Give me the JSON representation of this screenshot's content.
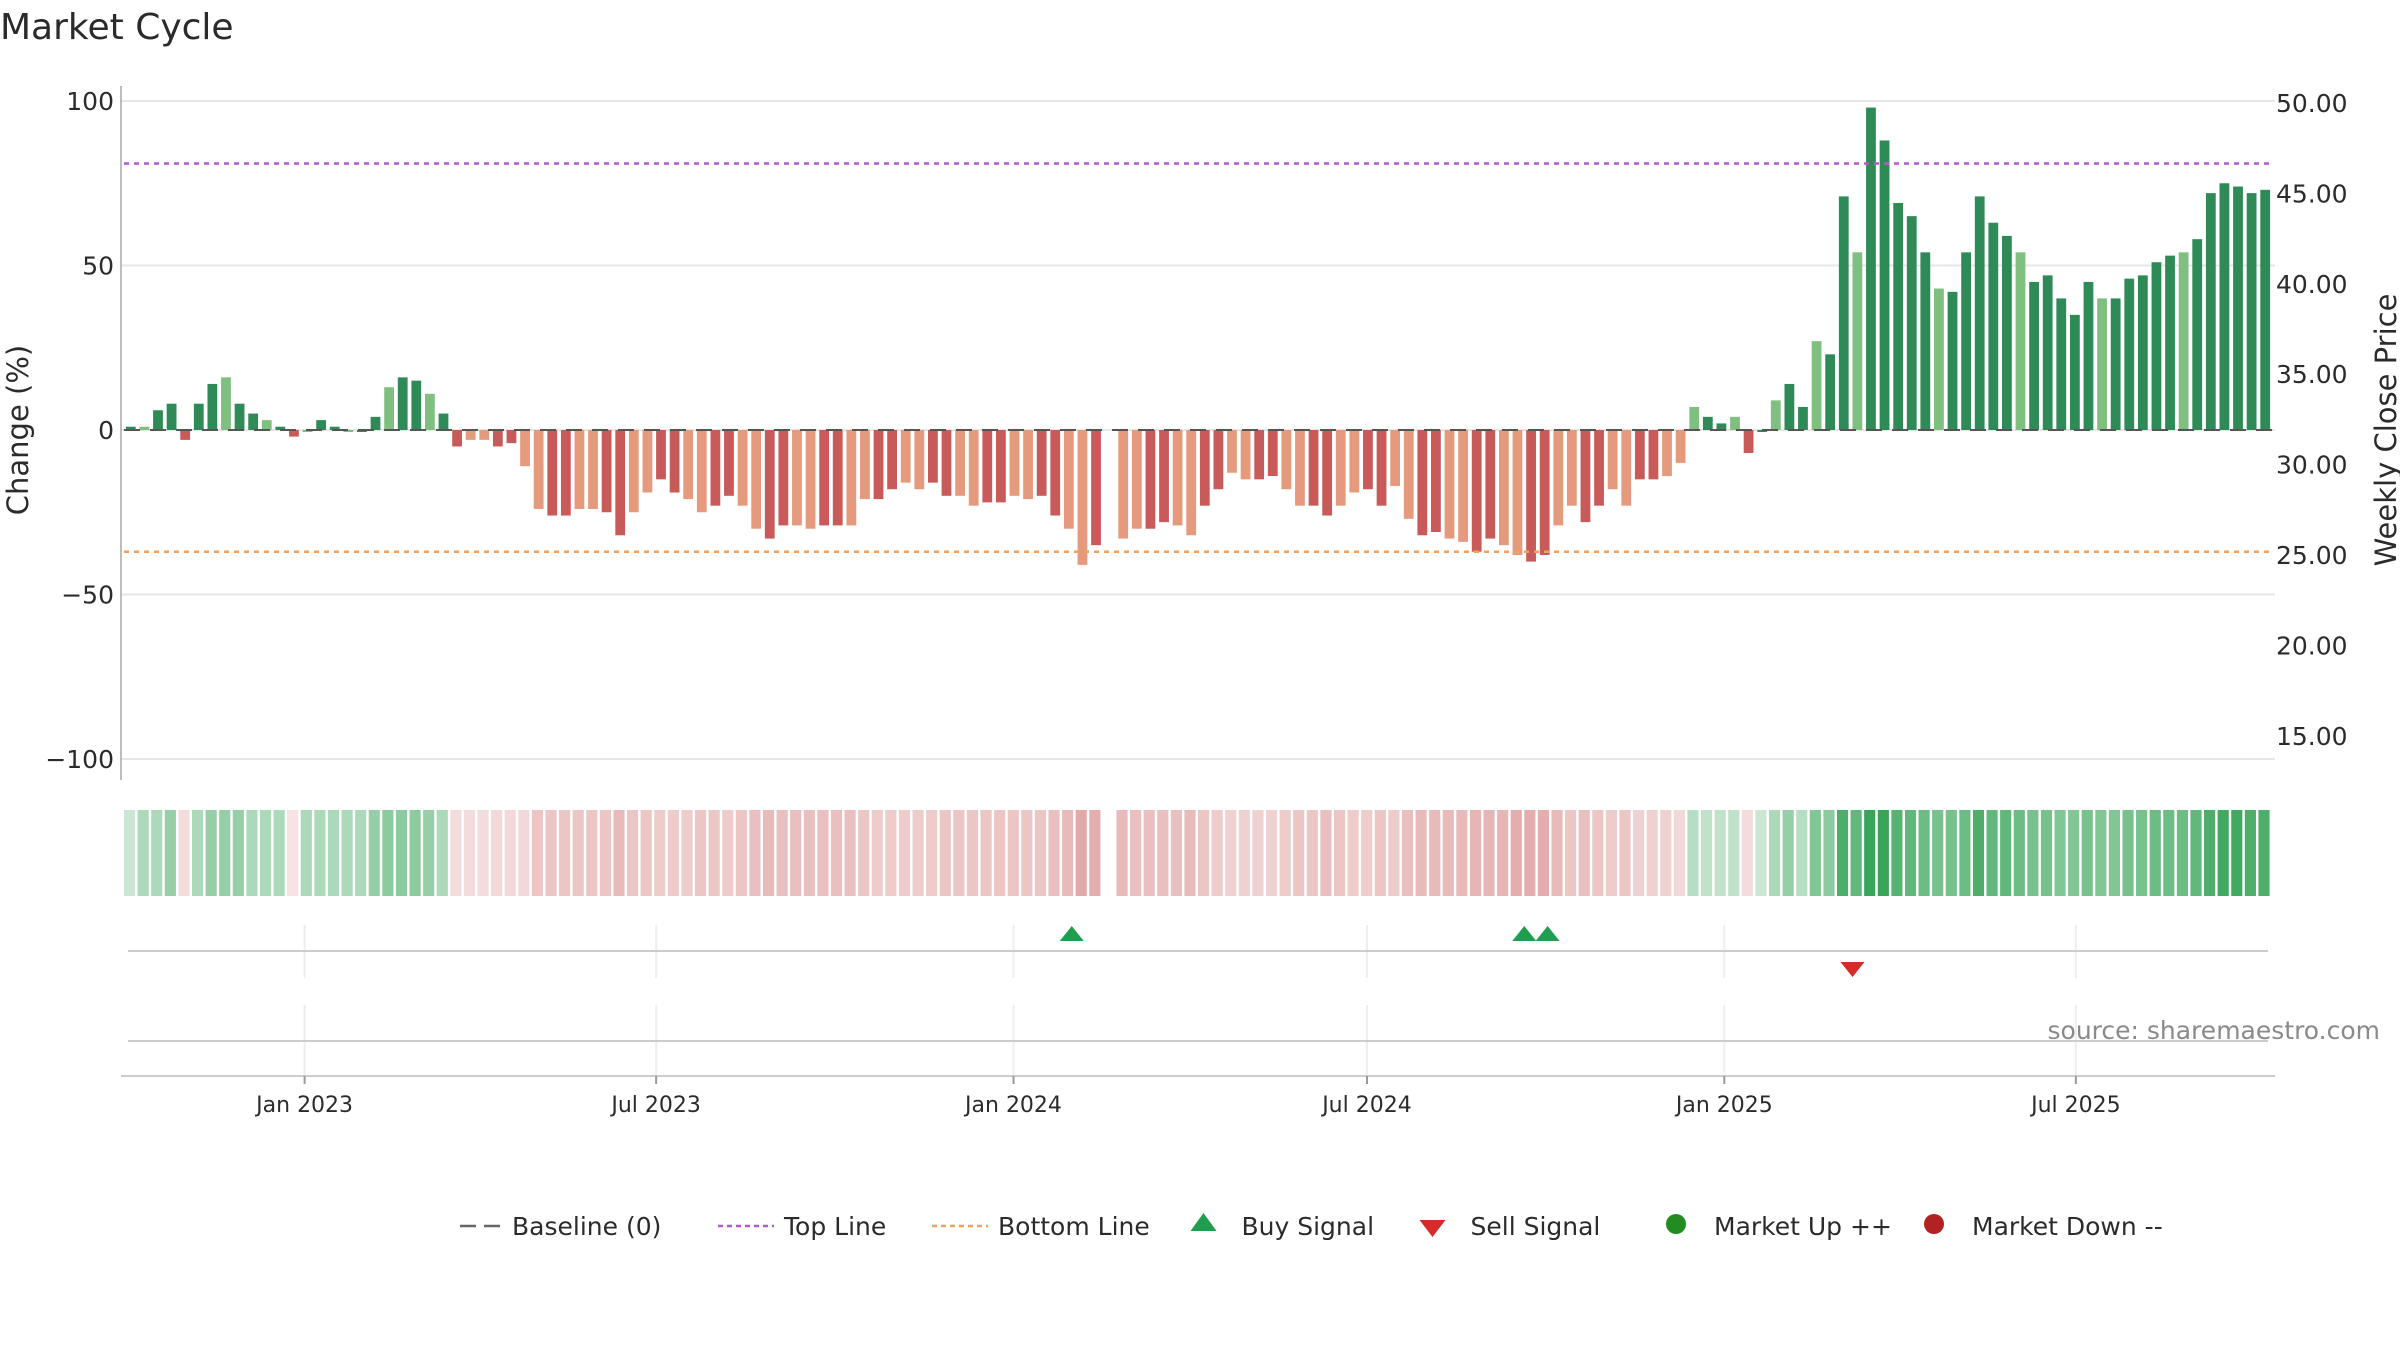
{
  "chart_data": {
    "type": "bar",
    "title": "Market Cycle",
    "ylabel": "Change (%)",
    "y2label": "Weekly Close Price",
    "ylim": [
      -100,
      100
    ],
    "y2lim": [
      13.5,
      51.0
    ],
    "y_ticks": [
      "100",
      "50",
      "0",
      "−50",
      "−100"
    ],
    "y2_ticks": [
      "50.00",
      "45.00",
      "40.00",
      "35.00",
      "30.00",
      "25.00",
      "20.00",
      "15.00"
    ],
    "x_ticks": [
      {
        "label": "Jan 2023",
        "date": "2023-01-01"
      },
      {
        "label": "Jul 2023",
        "date": "2023-07-01"
      },
      {
        "label": "Jan 2024",
        "date": "2024-01-01"
      },
      {
        "label": "Jul 2024",
        "date": "2024-07-01"
      },
      {
        "label": "Jan 2025",
        "date": "2025-01-01"
      },
      {
        "label": "Jul 2025",
        "date": "2025-07-01"
      }
    ],
    "x_start": "2022-09-30",
    "x_end": "2025-10-10",
    "period": "weekly",
    "top_line": 81,
    "bottom_line": -37,
    "baseline": 0,
    "grid": true,
    "legend_position": "bottom-center",
    "colors": {
      "up_strong": "#2e8b57",
      "up_weak": "#7fbf7f",
      "down_strong": "#c85a5a",
      "down_weak": "#e59a7e",
      "top_line": "#b05cc8",
      "bottom_line": "#f0a060",
      "buy": "#1f9e4f",
      "sell": "#d62b2b",
      "market_up": "#228b22",
      "market_down": "#b22222"
    },
    "series": [
      {
        "name": "Change",
        "values": [
          1,
          1,
          6,
          8,
          -3,
          8,
          14,
          16,
          8,
          5,
          3,
          1,
          -2,
          0,
          3,
          1,
          0,
          0,
          4,
          13,
          16,
          15,
          11,
          5,
          -5,
          -3,
          -3,
          -5,
          -4,
          -11,
          -24,
          -26,
          -26,
          -24,
          -24,
          -25,
          -32,
          -25,
          -19,
          -15,
          -19,
          -21,
          -25,
          -23,
          -20,
          -23,
          -30,
          -33,
          -29,
          -29,
          -30,
          -29,
          -29,
          -29,
          -21,
          -21,
          -18,
          -16,
          -18,
          -16,
          -20,
          -20,
          -23,
          -22,
          -22,
          -20,
          -21,
          -20,
          -26,
          -30,
          -41,
          -35,
          null,
          -33,
          -30,
          -30,
          -28,
          -29,
          -32,
          -23,
          -18,
          -13,
          -15,
          -15,
          -14,
          -18,
          -23,
          -23,
          -26,
          -23,
          -19,
          -18,
          -23,
          -17,
          -27,
          -32,
          -31,
          -33,
          -34,
          -37,
          -33,
          -35,
          -38,
          -40,
          -38,
          -29,
          -23,
          -28,
          -23,
          -18,
          -23,
          -15,
          -15,
          -14,
          -10,
          7,
          4,
          2,
          4,
          -7,
          0,
          9,
          14,
          7,
          27,
          23,
          71,
          54,
          98,
          88,
          69,
          65,
          54,
          43,
          42,
          54,
          71,
          63,
          59,
          54,
          45,
          47,
          40,
          35,
          45,
          40,
          40,
          46,
          47,
          51,
          53,
          54,
          58,
          72,
          75,
          74,
          72,
          73
        ]
      }
    ],
    "strip_values": [
      10,
      25,
      25,
      35,
      -15,
      25,
      35,
      35,
      35,
      25,
      25,
      25,
      -10,
      25,
      25,
      25,
      25,
      25,
      35,
      40,
      40,
      40,
      35,
      25,
      -15,
      -15,
      -15,
      -20,
      -20,
      -20,
      -35,
      -35,
      -35,
      -35,
      -35,
      -35,
      -45,
      -35,
      -35,
      -30,
      -30,
      -30,
      -35,
      -35,
      -30,
      -35,
      -40,
      -45,
      -40,
      -40,
      -40,
      -40,
      -40,
      -40,
      -35,
      -30,
      -30,
      -30,
      -30,
      -30,
      -35,
      -35,
      -35,
      -35,
      -35,
      -35,
      -35,
      -35,
      -40,
      -45,
      -60,
      -55,
      null,
      -45,
      -40,
      -40,
      -40,
      -40,
      -45,
      -35,
      -30,
      -25,
      -25,
      -25,
      -25,
      -30,
      -35,
      -35,
      -40,
      -35,
      -30,
      -30,
      -35,
      -30,
      -40,
      -45,
      -45,
      -45,
      -45,
      -50,
      -50,
      -50,
      -55,
      -55,
      -55,
      -45,
      -35,
      -40,
      -35,
      -30,
      -35,
      -25,
      -25,
      -25,
      -20,
      20,
      15,
      15,
      15,
      -15,
      10,
      25,
      35,
      20,
      45,
      40,
      70,
      60,
      90,
      80,
      65,
      60,
      55,
      50,
      50,
      55,
      70,
      60,
      60,
      55,
      50,
      50,
      45,
      45,
      50,
      45,
      45,
      50,
      50,
      55,
      55,
      55,
      60,
      70,
      75,
      75,
      70,
      70
    ],
    "buy_signals": [
      "2024-01-31",
      "2024-09-20",
      "2024-10-02"
    ],
    "sell_signals": [
      "2025-03-08"
    ],
    "market_up": [],
    "market_down": [],
    "legend": [
      {
        "key": "baseline",
        "label": "Baseline (0)"
      },
      {
        "key": "top",
        "label": "Top Line"
      },
      {
        "key": "bottom",
        "label": "Bottom Line"
      },
      {
        "key": "buy",
        "label": "Buy Signal"
      },
      {
        "key": "sell",
        "label": "Sell Signal"
      },
      {
        "key": "up",
        "label": "Market Up ++"
      },
      {
        "key": "down",
        "label": "Market Down --"
      }
    ],
    "source": "source: sharemaestro.com"
  }
}
